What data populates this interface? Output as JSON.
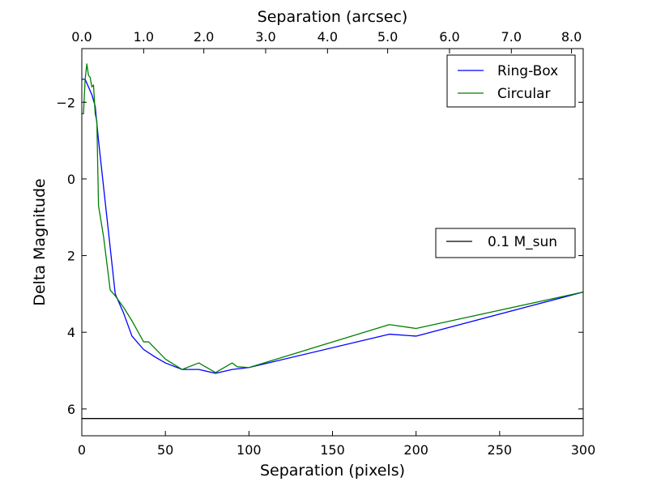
{
  "chart_data": {
    "type": "line",
    "title": "",
    "xlabel": "Separation (pixels)",
    "ylabel": "Delta Magnitude",
    "top_xlabel": "Separation (arcsec)",
    "xlim": [
      0,
      300
    ],
    "ylim": [
      6.7,
      -3.4
    ],
    "x_ticks": [
      0,
      50,
      100,
      150,
      200,
      250,
      300
    ],
    "x_tick_labels": [
      "0",
      "50",
      "100",
      "150",
      "200",
      "250",
      "300"
    ],
    "y_ticks": [
      -2,
      0,
      2,
      4,
      6
    ],
    "y_tick_labels": [
      "−2",
      "0",
      "2",
      "4",
      "6"
    ],
    "top_ticks": [
      {
        "pixels": 0,
        "label": "0.0"
      },
      {
        "pixels": 37,
        "label": "1.0"
      },
      {
        "pixels": 73,
        "label": "2.0"
      },
      {
        "pixels": 110,
        "label": "3.0"
      },
      {
        "pixels": 147,
        "label": "4.0"
      },
      {
        "pixels": 183,
        "label": "5.0"
      },
      {
        "pixels": 220,
        "label": "6.0"
      },
      {
        "pixels": 257,
        "label": "7.0"
      },
      {
        "pixels": 293,
        "label": "8.0"
      }
    ],
    "grid": false,
    "series": [
      {
        "name": "Ring-Box",
        "color": "#0000ff",
        "x": [
          0,
          2,
          4,
          6,
          8,
          10,
          13,
          17,
          20,
          25,
          30,
          37,
          44,
          50,
          60,
          70,
          80,
          90,
          100,
          184,
          200,
          300
        ],
        "y": [
          -2.6,
          -2.6,
          -2.4,
          -2.2,
          -1.9,
          -1.0,
          0.2,
          1.8,
          3.0,
          3.5,
          4.1,
          4.45,
          4.65,
          4.8,
          4.97,
          4.97,
          5.07,
          4.97,
          4.92,
          4.05,
          4.1,
          2.95
        ]
      },
      {
        "name": "Circular",
        "color": "#008000",
        "x": [
          0,
          1,
          2,
          3,
          4,
          5,
          6,
          7,
          8,
          9,
          10,
          13,
          17,
          20,
          25,
          30,
          37,
          40,
          50,
          60,
          70,
          80,
          90,
          93,
          100,
          184,
          200,
          300
        ],
        "y": [
          -1.7,
          -1.7,
          -2.6,
          -3.0,
          -2.7,
          -2.65,
          -2.4,
          -2.45,
          -1.7,
          -1.5,
          0.7,
          1.5,
          2.9,
          3.05,
          3.35,
          3.7,
          4.25,
          4.25,
          4.7,
          4.97,
          4.8,
          5.05,
          4.8,
          4.9,
          4.92,
          3.8,
          3.9,
          2.95
        ]
      }
    ],
    "reference_lines": [
      {
        "name": "0.1 M_sun",
        "y": 6.25,
        "color": "#000000"
      }
    ],
    "legend": {
      "series_position": "top-right",
      "reference_position": "center-right"
    }
  }
}
